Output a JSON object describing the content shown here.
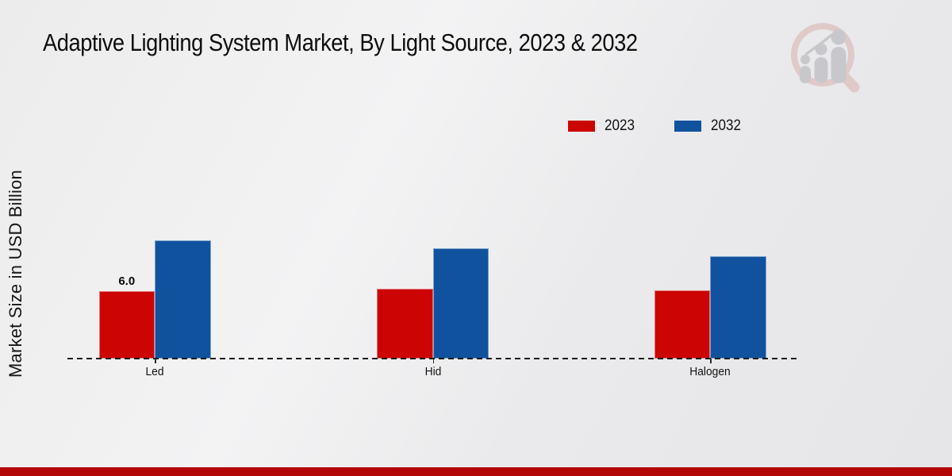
{
  "title": "Adaptive Lighting System Market, By Light Source, 2023 & 2032",
  "ylabel": "Market Size in USD Billion",
  "legend": [
    {
      "label": "2023",
      "color": "#cc0404"
    },
    {
      "label": "2032",
      "color": "#11529e"
    }
  ],
  "chart_data": {
    "type": "bar",
    "title": "Adaptive Lighting System Market, By Light Source, 2023 & 2032",
    "categories": [
      "Led",
      "Hid",
      "Halogen"
    ],
    "series": [
      {
        "name": "2023",
        "color": "#cc0404",
        "values": [
          6.0,
          6.2,
          6.1
        ]
      },
      {
        "name": "2032",
        "color": "#11529e",
        "values": [
          10.5,
          9.8,
          9.1
        ]
      }
    ],
    "bar_labels": {
      "series": "2023",
      "values": [
        "6.0",
        null,
        null
      ]
    },
    "xlabel": "",
    "ylabel": "Market Size in USD Billion",
    "ylim": [
      0,
      12
    ],
    "grid": false,
    "baseline": "dashed",
    "legend_position": "top-right"
  },
  "branding": {
    "logo_name": "market-research-future-magnifier-logo",
    "footer_accent_color": "#b30606",
    "logo_pink": "#dfc9c9",
    "logo_gray": "#c8c8cc"
  }
}
